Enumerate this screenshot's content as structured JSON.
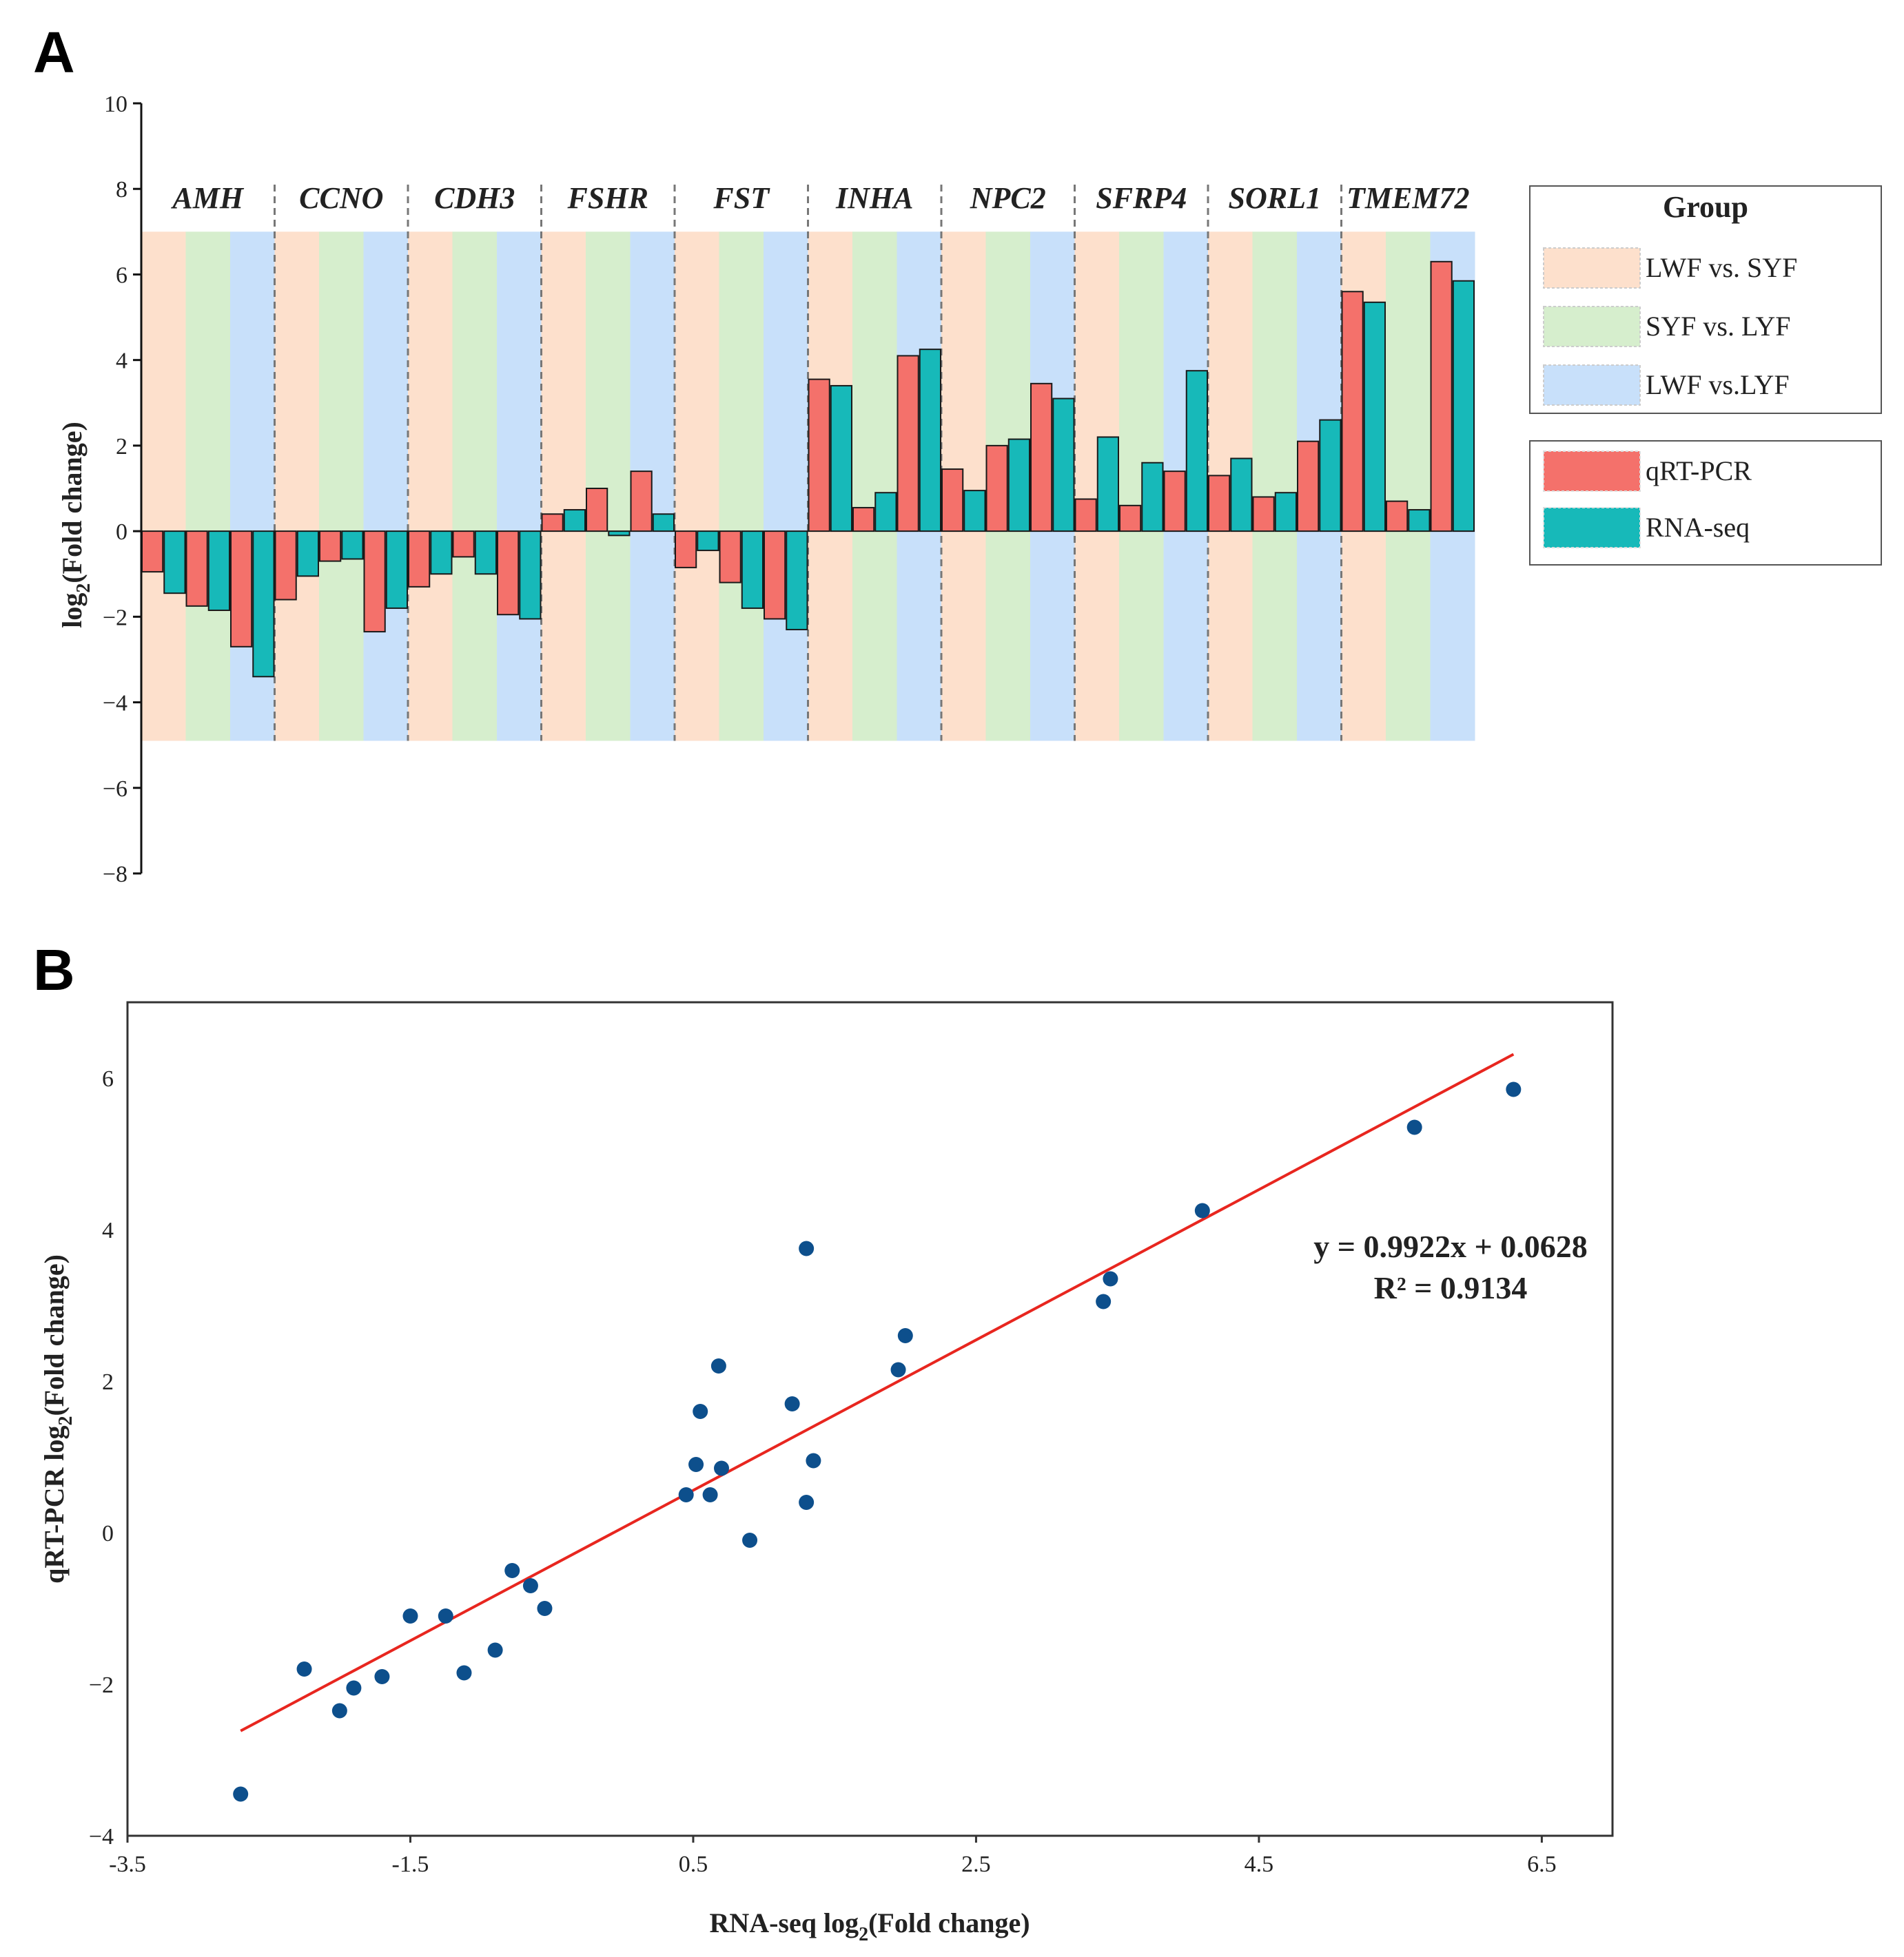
{
  "panel_a": {
    "letter": "A",
    "legend_group_title": "Group",
    "legend_groups": [
      {
        "label": "LWF vs. SYF",
        "color": "#fde0cc"
      },
      {
        "label": "SYF vs. LYF",
        "color": "#d6eecd"
      },
      {
        "label": "LWF vs.LYF",
        "color": "#c8e0fa"
      }
    ],
    "legend_methods": [
      {
        "label": "qRT-PCR",
        "color": "#f4716b"
      },
      {
        "label": "RNA-seq",
        "color": "#17b9b9"
      }
    ]
  },
  "panel_b": {
    "letter": "B",
    "equation": "y = 0.9922x + 0.0628",
    "r_squared": "R² = 0.9134"
  },
  "chart_data": [
    {
      "type": "bar",
      "ylabel_main": "log",
      "ylabel_sub": "2",
      "ylabel_rest": "(Fold change)",
      "ylim": [
        -8,
        10
      ],
      "yticks": [
        -8,
        -6,
        -4,
        -2,
        0,
        2,
        4,
        6,
        8,
        10
      ],
      "ytick_labels": [
        "−8",
        "−6",
        "−4",
        "−2",
        "0",
        "2",
        "4",
        "6",
        "8",
        "10"
      ],
      "categories": [
        "AMH",
        "CCNO",
        "CDH3",
        "FSHR",
        "FST",
        "INHA",
        "NPC2",
        "SFRP4",
        "SORL1",
        "TMEM72"
      ],
      "comparisons": [
        "LWF vs. SYF",
        "SYF vs. LYF",
        "LWF vs.LYF"
      ],
      "series": [
        {
          "name": "qRT-PCR",
          "values": [
            [
              -0.95,
              -1.75,
              -2.7
            ],
            [
              -1.6,
              -0.7,
              -2.35
            ],
            [
              -1.3,
              -0.6,
              -1.95
            ],
            [
              0.4,
              1.0,
              1.4
            ],
            [
              -0.85,
              -1.2,
              -2.05
            ],
            [
              3.55,
              0.55,
              4.1
            ],
            [
              1.45,
              2.0,
              3.45
            ],
            [
              0.75,
              0.6,
              1.4
            ],
            [
              1.3,
              0.8,
              2.1
            ],
            [
              5.6,
              0.7,
              6.3
            ]
          ]
        },
        {
          "name": "RNA-seq",
          "values": [
            [
              -1.45,
              -1.85,
              -3.4
            ],
            [
              -1.05,
              -0.65,
              -1.8
            ],
            [
              -1.0,
              -1.0,
              -2.05
            ],
            [
              0.5,
              -0.1,
              0.4
            ],
            [
              -0.45,
              -1.8,
              -2.3
            ],
            [
              3.4,
              0.9,
              4.25
            ],
            [
              0.95,
              2.15,
              3.1
            ],
            [
              2.2,
              1.6,
              3.75
            ],
            [
              1.7,
              0.9,
              2.6
            ],
            [
              5.35,
              0.5,
              5.85
            ]
          ]
        }
      ]
    },
    {
      "type": "scatter",
      "xlabel_main": "RNA-seq log",
      "xlabel_sub": "2",
      "xlabel_rest": "(Fold change)",
      "ylabel_main": "qRT-PCR log",
      "ylabel_sub": "2",
      "ylabel_rest": "(Fold change)",
      "xlim": [
        -3.5,
        7.0
      ],
      "ylim": [
        -4,
        7.0
      ],
      "xticks": [
        -3.5,
        -1.5,
        0.5,
        2.5,
        4.5,
        6.5
      ],
      "xtick_labels": [
        "-3.5",
        "-1.5",
        "0.5",
        "2.5",
        "4.5",
        "6.5"
      ],
      "yticks": [
        -4,
        -2,
        0,
        2,
        4,
        6
      ],
      "ytick_labels": [
        "−4",
        "−2",
        "0",
        "2",
        "4",
        "6"
      ],
      "fit": {
        "slope": 0.9922,
        "intercept": 0.0628,
        "x_range": [
          -2.7,
          6.3
        ],
        "color": "#e8261f"
      },
      "point_color": "#0d4f8c",
      "points": [
        {
          "x": -2.7,
          "y": -3.45
        },
        {
          "x": -2.25,
          "y": -1.8
        },
        {
          "x": -2.0,
          "y": -2.35
        },
        {
          "x": -1.9,
          "y": -2.05
        },
        {
          "x": -1.7,
          "y": -1.9
        },
        {
          "x": -1.5,
          "y": -1.1
        },
        {
          "x": -1.25,
          "y": -1.1
        },
        {
          "x": -1.12,
          "y": -1.85
        },
        {
          "x": -0.9,
          "y": -1.55
        },
        {
          "x": -0.78,
          "y": -0.5
        },
        {
          "x": -0.65,
          "y": -0.7
        },
        {
          "x": -0.55,
          "y": -1.0
        },
        {
          "x": 0.45,
          "y": 0.5
        },
        {
          "x": 0.52,
          "y": 0.9
        },
        {
          "x": 0.55,
          "y": 1.6
        },
        {
          "x": 0.62,
          "y": 0.5
        },
        {
          "x": 0.68,
          "y": 2.2
        },
        {
          "x": 0.7,
          "y": 0.85
        },
        {
          "x": 0.9,
          "y": -0.1
        },
        {
          "x": 1.2,
          "y": 1.7
        },
        {
          "x": 1.3,
          "y": 3.75
        },
        {
          "x": 1.3,
          "y": 0.4
        },
        {
          "x": 1.35,
          "y": 0.95
        },
        {
          "x": 1.95,
          "y": 2.15
        },
        {
          "x": 2.0,
          "y": 2.6
        },
        {
          "x": 3.4,
          "y": 3.05
        },
        {
          "x": 3.45,
          "y": 3.35
        },
        {
          "x": 4.1,
          "y": 4.25
        },
        {
          "x": 5.6,
          "y": 5.35
        },
        {
          "x": 6.3,
          "y": 5.85
        }
      ]
    }
  ]
}
